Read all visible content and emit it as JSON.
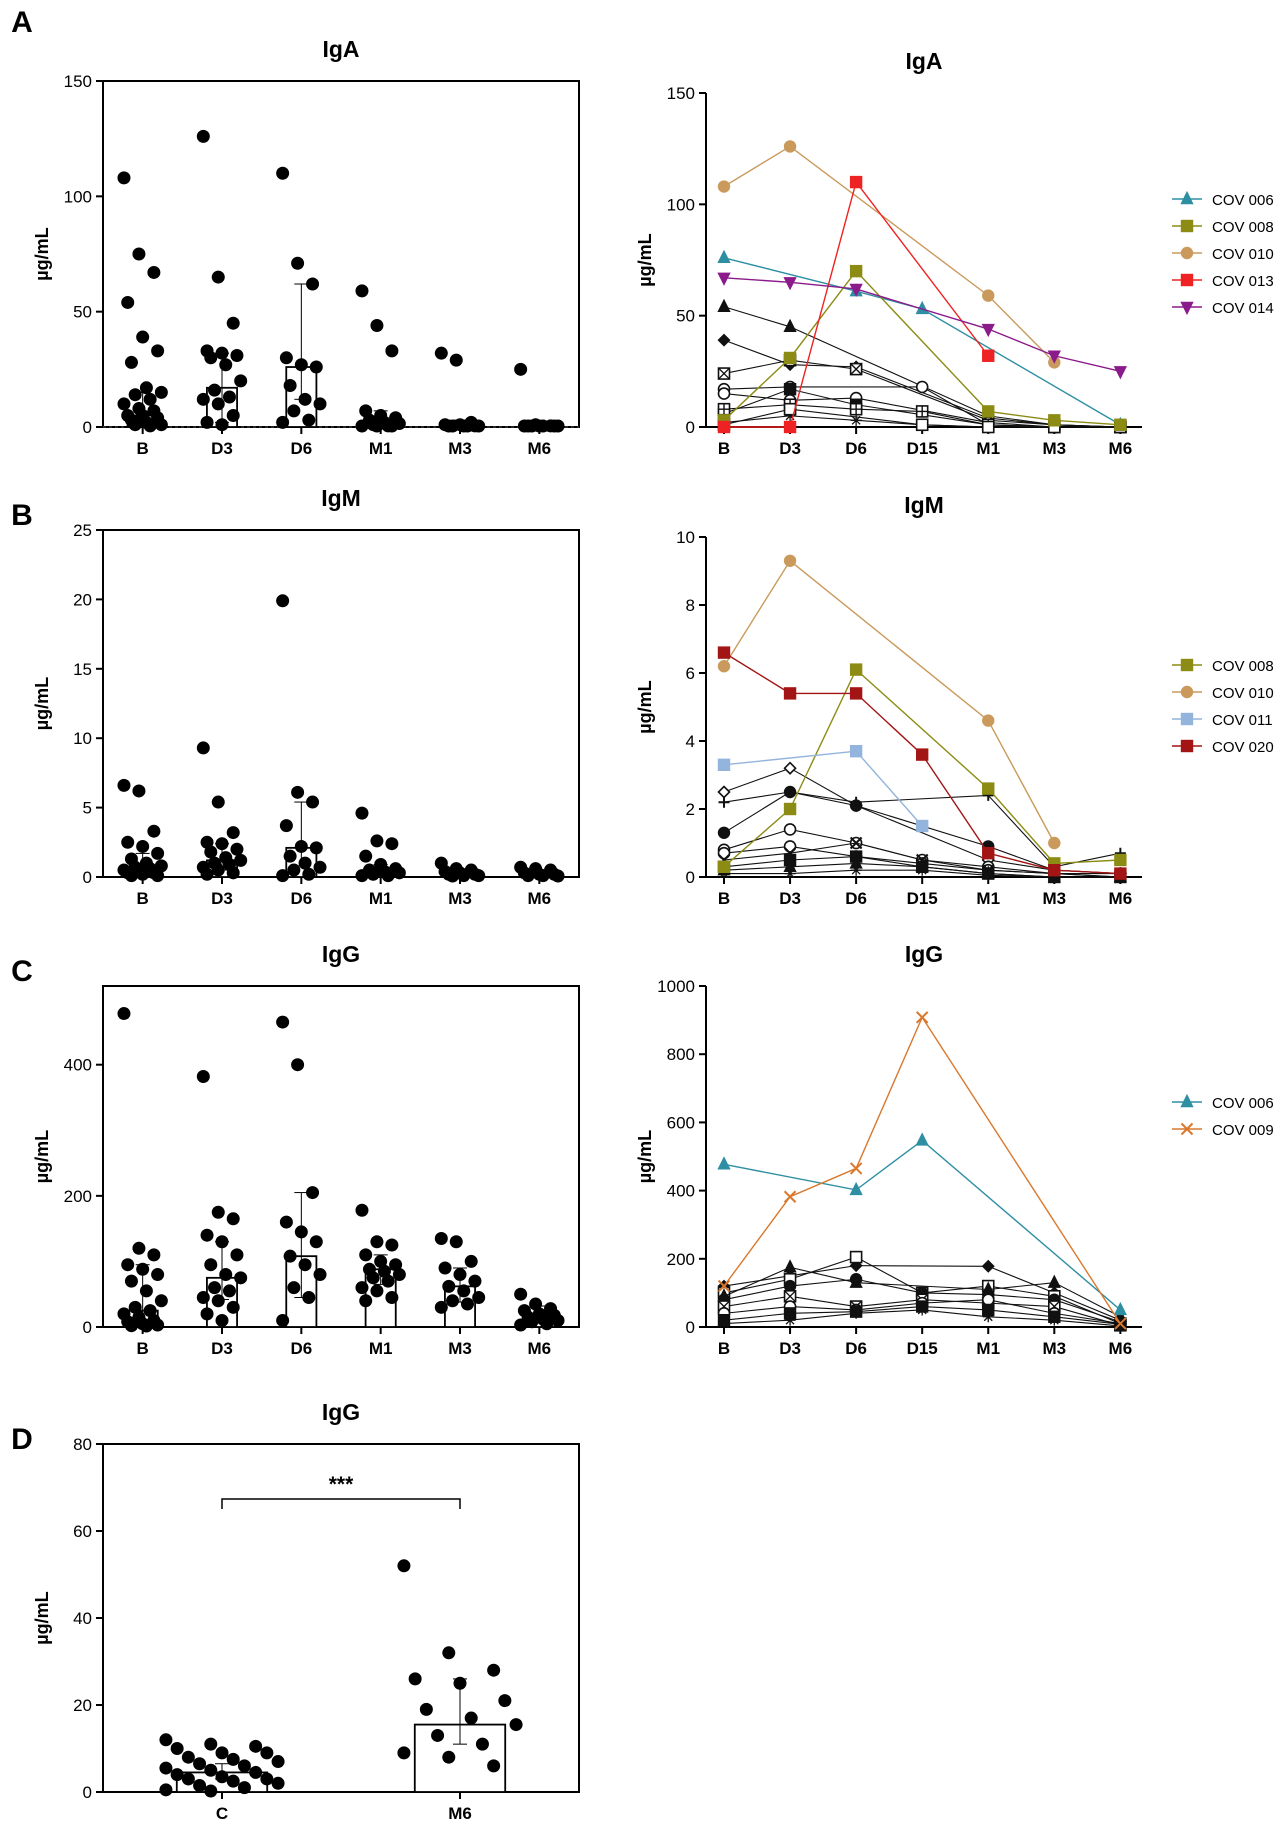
{
  "panel_letters": [
    "A",
    "B",
    "C",
    "D"
  ],
  "colors": {
    "COV 006": "#2e8fa3",
    "COV 008": "#8c8c14",
    "COV 009": "#d9782d",
    "COV 010": "#c99a5b",
    "COV 011": "#93b4dc",
    "COV 013": "#ee2222",
    "COV 014": "#8b1a8b",
    "COV 020": "#a31515"
  },
  "chart_data": [
    {
      "id": "A-left",
      "type": "bar",
      "title": "IgA",
      "ylabel": "µg/mL",
      "categories": [
        "B",
        "D3",
        "D6",
        "M1",
        "M3",
        "M6"
      ],
      "ylim": [
        0,
        150
      ],
      "yticks": [
        0,
        50,
        100,
        150
      ],
      "medians": [
        5,
        17,
        26,
        2,
        0.5,
        0.3
      ],
      "errors": [
        [
          0,
          15
        ],
        [
          2,
          32
        ],
        [
          12,
          62
        ],
        [
          0,
          7
        ],
        [
          0,
          3
        ],
        [
          0,
          1
        ]
      ],
      "points": [
        [
          108,
          75,
          67,
          54,
          39,
          33,
          28,
          17,
          15,
          14,
          12,
          10,
          8,
          7,
          5,
          5,
          4,
          3,
          2,
          1,
          1,
          0.5
        ],
        [
          126,
          65,
          45,
          33,
          32,
          31,
          30,
          27,
          20,
          16,
          13,
          12,
          10,
          5,
          2,
          1
        ],
        [
          110,
          71,
          62,
          30,
          27,
          26,
          18,
          12,
          10,
          7,
          3,
          2
        ],
        [
          59,
          44,
          33,
          7,
          5,
          4,
          3,
          2,
          1.5,
          1,
          0.5,
          0.3,
          0.2,
          0.1
        ],
        [
          32,
          29,
          2,
          1,
          1,
          0.5,
          0.3,
          0.2,
          0.1,
          0.1,
          0
        ],
        [
          25,
          1,
          0.5,
          0.4,
          0.3,
          0.2,
          0.2,
          0.1,
          0.1,
          0
        ]
      ]
    },
    {
      "id": "A-right",
      "type": "line",
      "title": "IgA",
      "ylabel": "µg/mL",
      "categories": [
        "B",
        "D3",
        "D6",
        "D15",
        "M1",
        "M3",
        "M6"
      ],
      "ylim": [
        0,
        150
      ],
      "yticks": [
        0,
        50,
        100,
        150
      ],
      "series": [
        {
          "name": "COV 006",
          "marker": "triangle",
          "values": [
            76,
            null,
            61,
            53,
            null,
            null,
            1
          ]
        },
        {
          "name": "COV 008",
          "marker": "square",
          "values": [
            3,
            31,
            70,
            null,
            7,
            3,
            1
          ]
        },
        {
          "name": "COV 010",
          "marker": "circle",
          "values": [
            108,
            126,
            null,
            null,
            59,
            29,
            null
          ]
        },
        {
          "name": "COV 013",
          "marker": "square",
          "values": [
            0,
            0,
            110,
            null,
            32,
            null,
            null
          ]
        },
        {
          "name": "COV 014",
          "marker": "triangle-down",
          "values": [
            67,
            65,
            62,
            null,
            44,
            32,
            25
          ]
        }
      ],
      "background_series": [
        {
          "marker": "triangle",
          "values": [
            54,
            45,
            null,
            null,
            5,
            1,
            0
          ]
        },
        {
          "marker": "diamond",
          "values": [
            39,
            28,
            27,
            null,
            4,
            1,
            0
          ]
        },
        {
          "marker": "boxx",
          "values": [
            24,
            30,
            26,
            null,
            3,
            1,
            0
          ]
        },
        {
          "marker": "circle-open",
          "values": [
            17,
            18,
            null,
            18,
            1,
            0,
            0
          ]
        },
        {
          "marker": "circle-open",
          "values": [
            15,
            12,
            13,
            null,
            2,
            0,
            0
          ]
        },
        {
          "marker": "square",
          "values": [
            6,
            17,
            10,
            null,
            1,
            0,
            0
          ]
        },
        {
          "marker": "boxplus",
          "values": [
            8,
            10,
            8,
            7,
            1,
            0,
            0
          ]
        },
        {
          "marker": "star",
          "values": [
            2,
            5,
            3,
            1,
            0,
            0,
            0
          ]
        },
        {
          "marker": "square-open",
          "values": [
            1,
            8,
            null,
            1,
            0,
            0,
            0
          ]
        }
      ],
      "legend": [
        "COV 006",
        "COV 008",
        "COV 010",
        "COV 013",
        "COV 014"
      ]
    },
    {
      "id": "B-left",
      "type": "bar",
      "title": "IgM",
      "ylabel": "µg/mL",
      "categories": [
        "B",
        "D3",
        "D6",
        "M1",
        "M3",
        "M6"
      ],
      "ylim": [
        0,
        25
      ],
      "yticks": [
        0,
        5,
        10,
        15,
        20,
        25
      ],
      "medians": [
        0.6,
        1.2,
        2.1,
        0.5,
        0.3,
        0.2
      ],
      "errors": [
        [
          0.2,
          1.7
        ],
        [
          0.5,
          2.4
        ],
        [
          0.8,
          5.4
        ],
        [
          0.2,
          0.9
        ],
        [
          0.1,
          0.5
        ],
        [
          0.05,
          0.3
        ]
      ],
      "points": [
        [
          6.6,
          6.2,
          3.3,
          2.5,
          2.2,
          1.7,
          1.3,
          1.0,
          0.8,
          0.7,
          0.6,
          0.5,
          0.4,
          0.3,
          0.3,
          0.2,
          0.1,
          0.1
        ],
        [
          9.3,
          5.4,
          3.2,
          2.5,
          2.4,
          2.0,
          1.8,
          1.4,
          1.2,
          1.0,
          0.9,
          0.7,
          0.5,
          0.3,
          0.2
        ],
        [
          19.9,
          6.1,
          5.4,
          3.7,
          2.2,
          2.1,
          1.5,
          1.0,
          0.7,
          0.5,
          0.2,
          0.1
        ],
        [
          4.6,
          2.6,
          2.4,
          1.5,
          0.9,
          0.6,
          0.5,
          0.4,
          0.3,
          0.2,
          0.1,
          0.1
        ],
        [
          1.0,
          0.6,
          0.5,
          0.4,
          0.3,
          0.2,
          0.2,
          0.1,
          0.1,
          0.05
        ],
        [
          0.7,
          0.6,
          0.5,
          0.3,
          0.2,
          0.2,
          0.1,
          0.1,
          0.05
        ]
      ]
    },
    {
      "id": "B-right",
      "type": "line",
      "title": "IgM",
      "ylabel": "µg/mL",
      "categories": [
        "B",
        "D3",
        "D6",
        "D15",
        "M1",
        "M3",
        "M6"
      ],
      "ylim": [
        0,
        10
      ],
      "yticks": [
        0,
        2,
        4,
        6,
        8,
        10
      ],
      "series": [
        {
          "name": "COV 008",
          "marker": "square",
          "values": [
            0.3,
            2.0,
            6.1,
            null,
            2.6,
            0.4,
            0.5
          ]
        },
        {
          "name": "COV 010",
          "marker": "circle",
          "values": [
            6.2,
            9.3,
            null,
            null,
            4.6,
            1.0,
            null
          ]
        },
        {
          "name": "COV 011",
          "marker": "square",
          "values": [
            3.3,
            null,
            3.7,
            1.5,
            null,
            null,
            null
          ]
        },
        {
          "name": "COV 020",
          "marker": "square",
          "values": [
            6.6,
            5.4,
            5.4,
            3.6,
            0.7,
            0.2,
            0.1
          ]
        }
      ],
      "background_series": [
        {
          "marker": "diamond-open",
          "values": [
            2.5,
            3.2,
            2.1,
            null,
            0.5,
            0.2,
            0.1
          ]
        },
        {
          "marker": "plus",
          "values": [
            2.2,
            2.5,
            2.2,
            null,
            2.4,
            0.3,
            0.7
          ]
        },
        {
          "marker": "circle",
          "values": [
            1.3,
            2.5,
            2.1,
            null,
            0.9,
            0.2,
            0.1
          ]
        },
        {
          "marker": "circle-open",
          "values": [
            0.8,
            1.4,
            1.0,
            0.5,
            0.3,
            0.1,
            0.1
          ]
        },
        {
          "marker": "circle-open",
          "values": [
            0.7,
            0.9,
            0.6,
            0.4,
            0.2,
            0.1,
            0
          ]
        },
        {
          "marker": "cross",
          "values": [
            0.5,
            0.7,
            1.0,
            0.5,
            0.2,
            0.1,
            0
          ]
        },
        {
          "marker": "square",
          "values": [
            0.3,
            0.5,
            0.6,
            0.3,
            0.1,
            0,
            0
          ]
        },
        {
          "marker": "triangle",
          "values": [
            0.2,
            0.3,
            0.4,
            0.3,
            0.1,
            0,
            0
          ]
        },
        {
          "marker": "star",
          "values": [
            0.1,
            0.1,
            0.2,
            0.2,
            0.05,
            0,
            0
          ]
        }
      ],
      "legend": [
        "COV 008",
        "COV 010",
        "COV 011",
        "COV 020"
      ]
    },
    {
      "id": "C-left",
      "type": "bar",
      "title": "IgG",
      "ylabel": "µg/mL",
      "categories": [
        "B",
        "D3",
        "D6",
        "M1",
        "M3",
        "M6"
      ],
      "ylim": [
        0,
        520
      ],
      "yticks": [
        0,
        200,
        400
      ],
      "medians": [
        25,
        75,
        108,
        88,
        62,
        20
      ],
      "errors": [
        [
          3,
          95
        ],
        [
          42,
          130
        ],
        [
          45,
          205
        ],
        [
          65,
          110
        ],
        [
          38,
          90
        ],
        [
          8,
          32
        ]
      ],
      "points": [
        [
          478,
          120,
          110,
          95,
          88,
          80,
          70,
          55,
          40,
          30,
          25,
          20,
          15,
          10,
          8,
          5,
          3,
          2,
          1
        ],
        [
          382,
          175,
          165,
          140,
          130,
          110,
          95,
          80,
          75,
          60,
          55,
          45,
          40,
          30,
          20,
          10
        ],
        [
          465,
          400,
          205,
          160,
          145,
          130,
          108,
          95,
          80,
          60,
          45,
          10
        ],
        [
          178,
          130,
          125,
          110,
          100,
          95,
          88,
          85,
          80,
          75,
          70,
          60,
          55,
          45,
          40
        ],
        [
          135,
          130,
          100,
          90,
          80,
          70,
          62,
          55,
          45,
          40,
          35,
          30
        ],
        [
          50,
          35,
          28,
          25,
          20,
          18,
          15,
          12,
          10,
          8,
          5,
          3
        ]
      ]
    },
    {
      "id": "C-right",
      "type": "line",
      "title": "IgG",
      "ylabel": "µg/mL",
      "categories": [
        "B",
        "D3",
        "D6",
        "D15",
        "M1",
        "M3",
        "M6"
      ],
      "ylim": [
        0,
        1000
      ],
      "yticks": [
        0,
        200,
        400,
        600,
        800,
        1000
      ],
      "series": [
        {
          "name": "COV 006",
          "marker": "triangle",
          "values": [
            477,
            null,
            402,
            547,
            null,
            null,
            50
          ]
        },
        {
          "name": "COV 009",
          "marker": "x",
          "values": [
            120,
            382,
            465,
            908,
            null,
            null,
            10
          ]
        }
      ],
      "background_series": [
        {
          "marker": "diamond",
          "values": [
            120,
            150,
            180,
            null,
            178,
            100,
            20
          ]
        },
        {
          "marker": "square-open",
          "values": [
            100,
            140,
            205,
            100,
            120,
            90,
            10
          ]
        },
        {
          "marker": "triangle",
          "values": [
            90,
            175,
            130,
            null,
            110,
            130,
            30
          ]
        },
        {
          "marker": "circle",
          "values": [
            80,
            120,
            140,
            100,
            95,
            80,
            15
          ]
        },
        {
          "marker": "boxx",
          "values": [
            60,
            90,
            60,
            80,
            70,
            60,
            5
          ]
        },
        {
          "marker": "circle-open",
          "values": [
            40,
            60,
            50,
            70,
            80,
            40,
            10
          ]
        },
        {
          "marker": "square",
          "values": [
            20,
            40,
            45,
            60,
            50,
            30,
            8
          ]
        },
        {
          "marker": "star",
          "values": [
            10,
            20,
            40,
            50,
            30,
            20,
            3
          ]
        }
      ],
      "legend": [
        "COV 006",
        "COV 009"
      ]
    },
    {
      "id": "D",
      "type": "bar",
      "title": "IgG",
      "ylabel": "µg/mL",
      "categories": [
        "C",
        "M6"
      ],
      "ylim": [
        0,
        80
      ],
      "yticks": [
        0,
        20,
        40,
        60,
        80
      ],
      "medians": [
        4.5,
        15.5
      ],
      "errors": [
        [
          3,
          6.5
        ],
        [
          11,
          26
        ]
      ],
      "points": [
        [
          12,
          11,
          10.5,
          10,
          9,
          9,
          8,
          7.5,
          7,
          6.5,
          6,
          5.5,
          5,
          4.5,
          4,
          3.5,
          3,
          3,
          2.5,
          2,
          1.5,
          1,
          0.5,
          0
        ],
        [
          52,
          32,
          28,
          26,
          25,
          21,
          19,
          17,
          15.5,
          13,
          11,
          9,
          8,
          6
        ]
      ],
      "significance": "***"
    }
  ]
}
